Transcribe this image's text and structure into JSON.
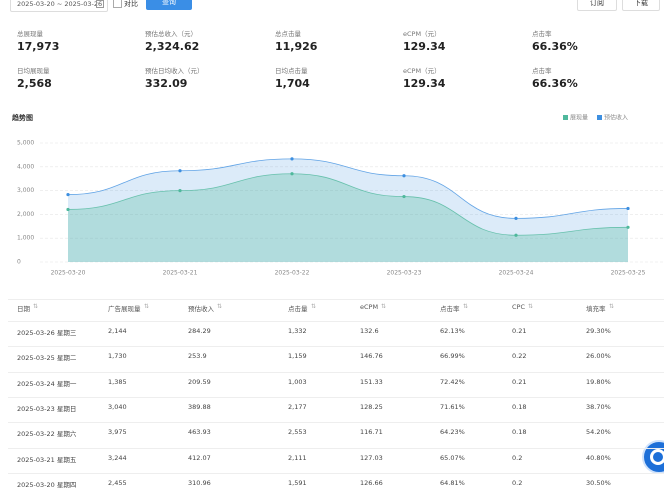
{
  "toolbar": {
    "date_range": "2025-03-20 ~ 2025-03-26",
    "compare_label": "对比",
    "query_button": "查询",
    "subscribe_button": "订阅",
    "download_button": "下载"
  },
  "stats": [
    [
      {
        "label": "总展现量",
        "value": "17,973"
      },
      {
        "label": "预估总收入（元）",
        "value": "2,324.62"
      },
      {
        "label": "总点击量",
        "value": "11,926"
      },
      {
        "label": "eCPM（元）",
        "value": "129.34"
      },
      {
        "label": "点击率",
        "value": "66.36%"
      }
    ],
    [
      {
        "label": "日均展现量",
        "value": "2,568"
      },
      {
        "label": "预估日均收入（元）",
        "value": "332.09"
      },
      {
        "label": "日均点击量",
        "value": "1,704"
      },
      {
        "label": "eCPM（元）",
        "value": "129.34"
      },
      {
        "label": "点击率",
        "value": "66.36%"
      }
    ]
  ],
  "chart_data": {
    "type": "area",
    "title": "趋势图",
    "categories": [
      "2025-03-20",
      "2025-03-21",
      "2025-03-22",
      "2025-03-23",
      "2025-03-24",
      "2025-03-25"
    ],
    "series": [
      {
        "name": "展现量",
        "color": "#4fb89c",
        "values": [
          2208,
          3000,
          3708,
          2750,
          1125,
          1458
        ]
      },
      {
        "name": "预估收入",
        "color": "#3d8fe0",
        "values": [
          2833,
          3833,
          4333,
          3625,
          1833,
          2250
        ]
      }
    ],
    "ylim": [
      0,
      5000
    ],
    "yticks": [
      0,
      {
        "value": 1000,
        "label": "1,000"
      },
      {
        "value": 2000,
        "label": "2,000"
      },
      {
        "value": 3000,
        "label": "3,000"
      },
      {
        "value": 4000,
        "label": "4,000"
      },
      {
        "value": 5000,
        "label": "5,000"
      }
    ],
    "grid": true
  },
  "table": {
    "headers": [
      "日期",
      "广告展现量",
      "预估收入",
      "点击量",
      "eCPM",
      "点击率",
      "CPC",
      "填充率"
    ],
    "rows": [
      [
        "2025-03-26 星期三",
        "2,144",
        "284.29",
        "1,332",
        "132.6",
        "62.13%",
        "0.21",
        "29.30%"
      ],
      [
        "2025-03-25 星期二",
        "1,730",
        "253.9",
        "1,159",
        "146.76",
        "66.99%",
        "0.22",
        "26.00%"
      ],
      [
        "2025-03-24 星期一",
        "1,385",
        "209.59",
        "1,003",
        "151.33",
        "72.42%",
        "0.21",
        "19.80%"
      ],
      [
        "2025-03-23 星期日",
        "3,040",
        "389.88",
        "2,177",
        "128.25",
        "71.61%",
        "0.18",
        "38.70%"
      ],
      [
        "2025-03-22 星期六",
        "3,975",
        "463.93",
        "2,553",
        "116.71",
        "64.23%",
        "0.18",
        "54.20%"
      ],
      [
        "2025-03-21 星期五",
        "3,244",
        "412.07",
        "2,111",
        "127.03",
        "65.07%",
        "0.2",
        "40.80%"
      ],
      [
        "2025-03-20 星期四",
        "2,455",
        "310.96",
        "1,591",
        "126.66",
        "64.81%",
        "0.2",
        "30.50%"
      ]
    ]
  }
}
